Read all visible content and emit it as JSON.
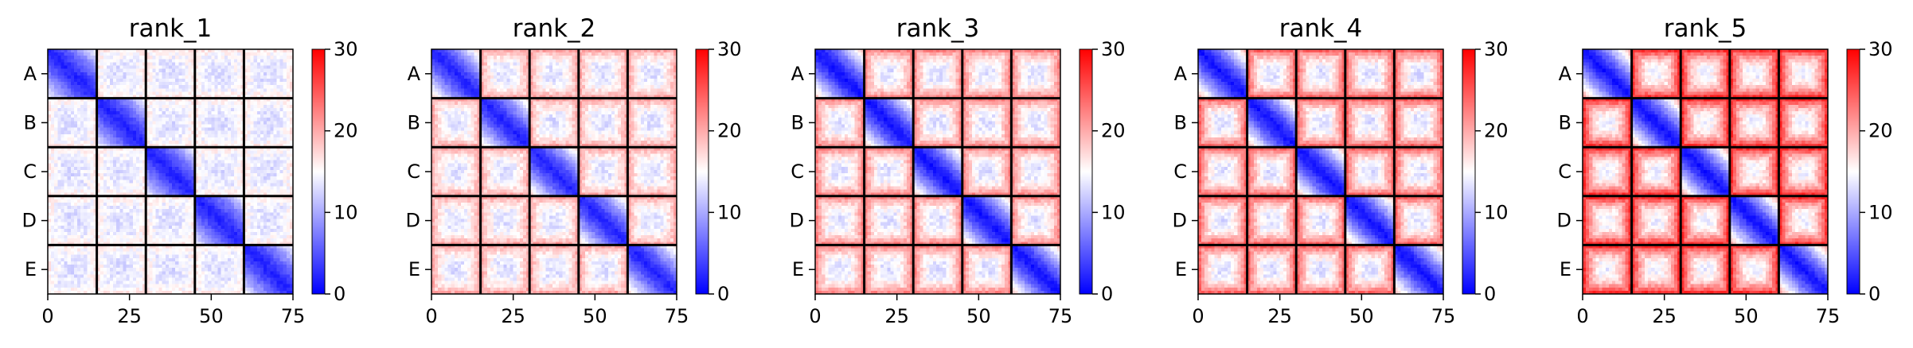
{
  "chart_data": [
    {
      "type": "heatmap",
      "title": "rank_1",
      "row_labels": [
        "A",
        "B",
        "C",
        "D",
        "E"
      ],
      "xticks": [
        0,
        25,
        50,
        75
      ],
      "xlim": [
        0,
        75
      ],
      "grid_size": 75,
      "block_size": 15,
      "colorbar": {
        "min": 0,
        "max": 30,
        "ticks": [
          0,
          10,
          20,
          30
        ],
        "colormap": "bwr"
      },
      "diag_value": 2,
      "within_block_edge_value": 14,
      "off_block_value": 13,
      "off_block_edge_value": 16
    },
    {
      "type": "heatmap",
      "title": "rank_2",
      "row_labels": [
        "A",
        "B",
        "C",
        "D",
        "E"
      ],
      "xticks": [
        0,
        25,
        50,
        75
      ],
      "xlim": [
        0,
        75
      ],
      "grid_size": 75,
      "block_size": 15,
      "colorbar": {
        "min": 0,
        "max": 30,
        "ticks": [
          0,
          10,
          20,
          30
        ],
        "colormap": "bwr"
      },
      "diag_value": 2,
      "within_block_edge_value": 17,
      "off_block_value": 13,
      "off_block_edge_value": 20
    },
    {
      "type": "heatmap",
      "title": "rank_3",
      "row_labels": [
        "A",
        "B",
        "C",
        "D",
        "E"
      ],
      "xticks": [
        0,
        25,
        50,
        75
      ],
      "xlim": [
        0,
        75
      ],
      "grid_size": 75,
      "block_size": 15,
      "colorbar": {
        "min": 0,
        "max": 30,
        "ticks": [
          0,
          10,
          20,
          30
        ],
        "colormap": "bwr"
      },
      "diag_value": 1,
      "within_block_edge_value": 18,
      "off_block_value": 13,
      "off_block_edge_value": 22
    },
    {
      "type": "heatmap",
      "title": "rank_4",
      "row_labels": [
        "A",
        "B",
        "C",
        "D",
        "E"
      ],
      "xticks": [
        0,
        25,
        50,
        75
      ],
      "xlim": [
        0,
        75
      ],
      "grid_size": 75,
      "block_size": 15,
      "colorbar": {
        "min": 0,
        "max": 30,
        "ticks": [
          0,
          10,
          20,
          30
        ],
        "colormap": "bwr"
      },
      "diag_value": 1,
      "within_block_edge_value": 19,
      "off_block_value": 13,
      "off_block_edge_value": 24
    },
    {
      "type": "heatmap",
      "title": "rank_5",
      "row_labels": [
        "A",
        "B",
        "C",
        "D",
        "E"
      ],
      "xticks": [
        0,
        25,
        50,
        75
      ],
      "xlim": [
        0,
        75
      ],
      "grid_size": 75,
      "block_size": 15,
      "colorbar": {
        "min": 0,
        "max": 30,
        "ticks": [
          0,
          10,
          20,
          30
        ],
        "colormap": "bwr"
      },
      "diag_value": 1,
      "within_block_edge_value": 20,
      "off_block_value": 14,
      "off_block_edge_value": 27
    }
  ]
}
